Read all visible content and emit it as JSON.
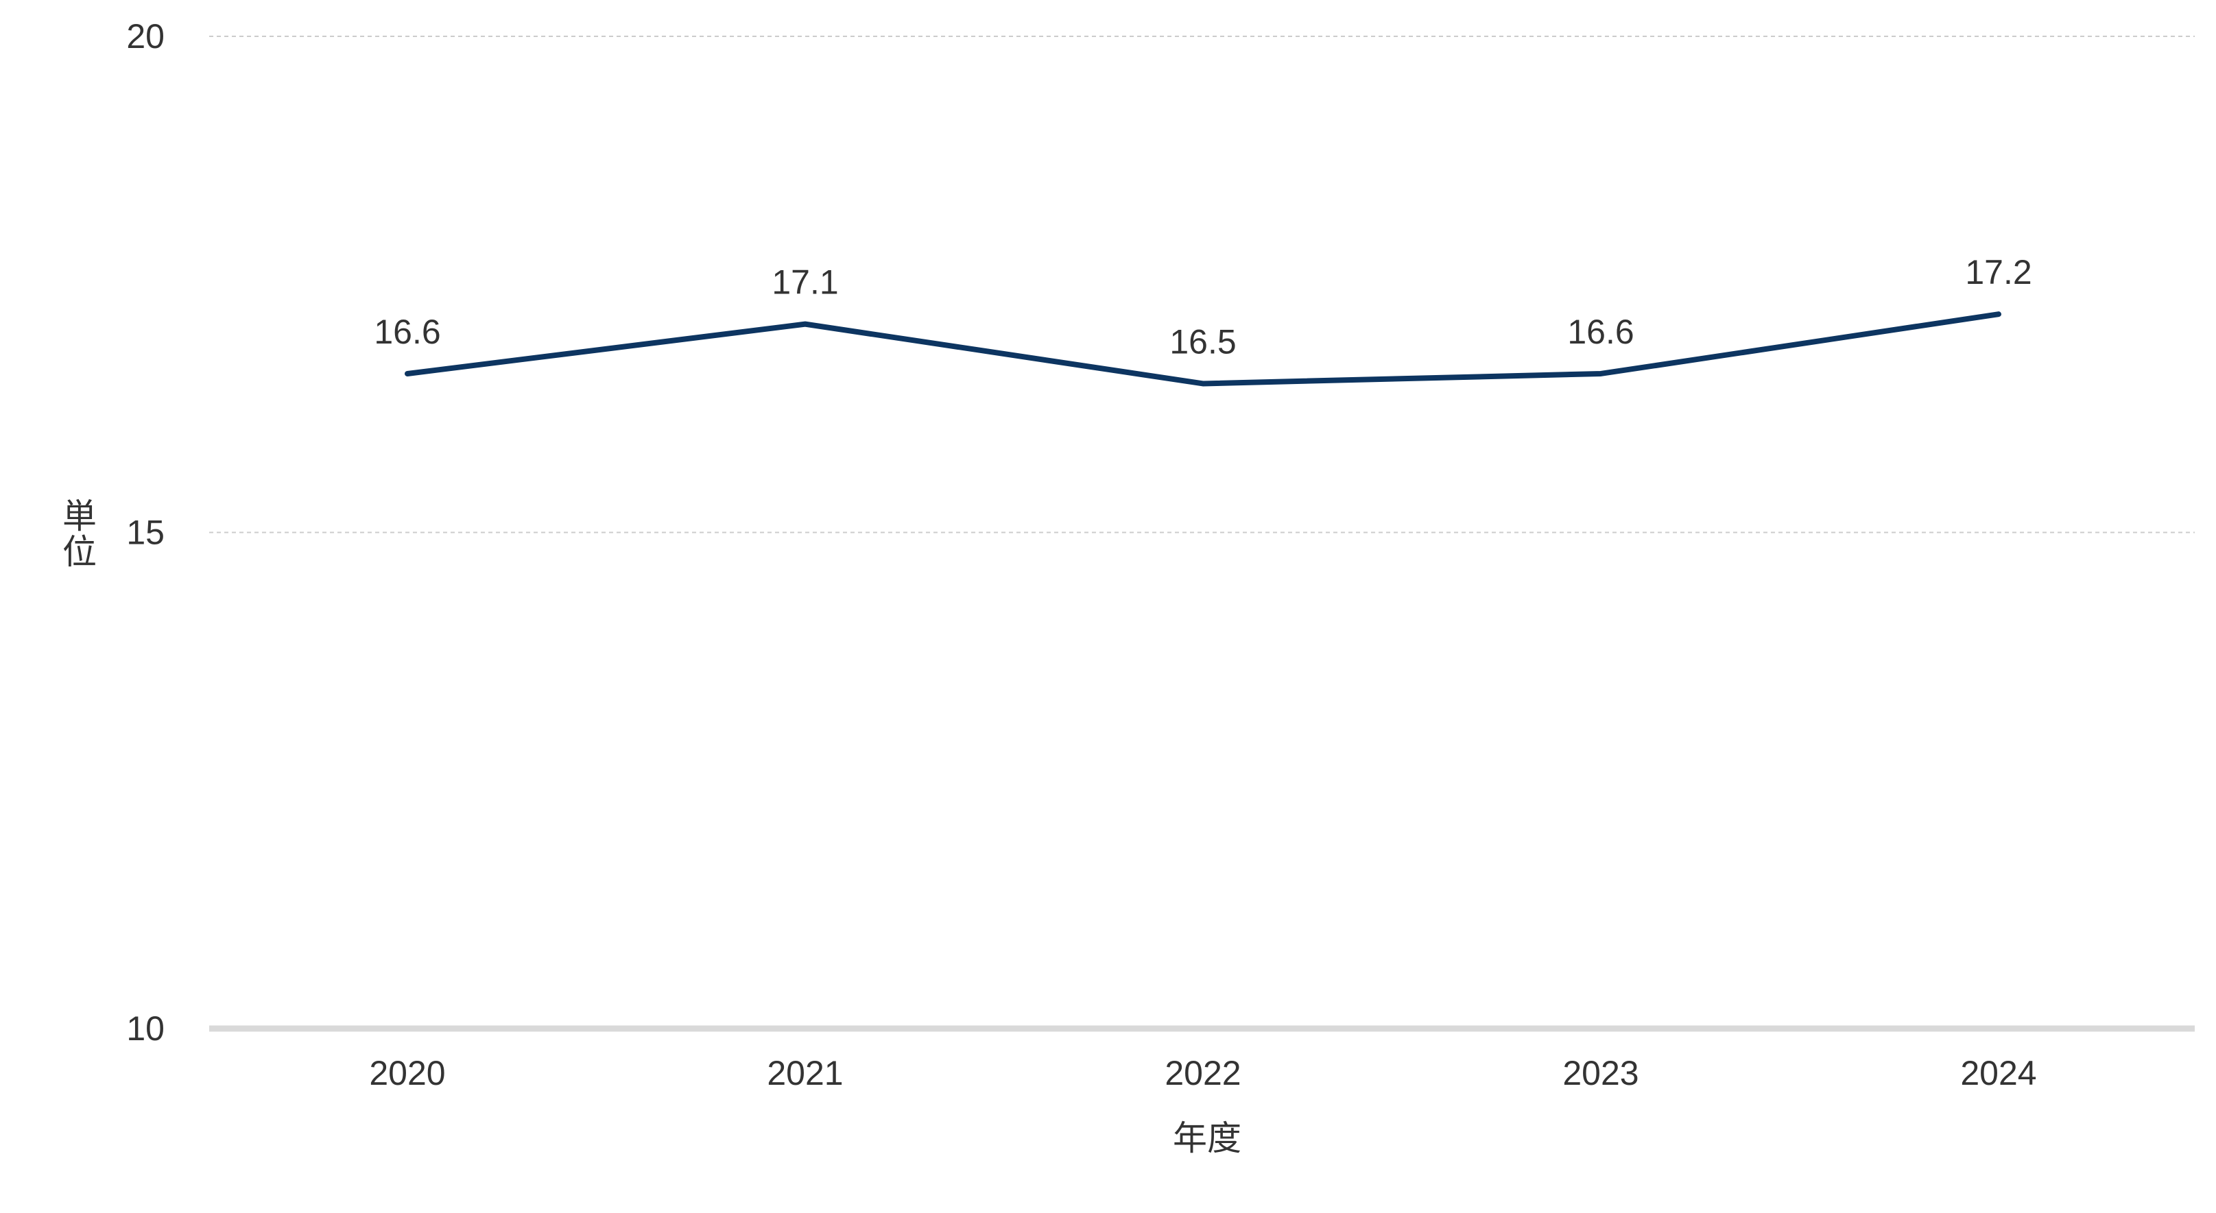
{
  "chart_data": {
    "type": "line",
    "title": "",
    "xlabel": "年度",
    "ylabel": "単位",
    "categories": [
      "2020",
      "2021",
      "2022",
      "2023",
      "2024"
    ],
    "series": [
      {
        "values": [
          16.6,
          17.1,
          16.5,
          16.6,
          17.2
        ],
        "labels": [
          "16.6",
          "17.1",
          "16.5",
          "16.6",
          "17.2"
        ],
        "color": "#0d3561"
      }
    ],
    "ylim": [
      10,
      20
    ],
    "yticks": [
      "10",
      "15",
      "20"
    ],
    "grid": true,
    "grid_color": "#cccccc",
    "axis_color": "#d9d9d9",
    "legend": "none"
  }
}
